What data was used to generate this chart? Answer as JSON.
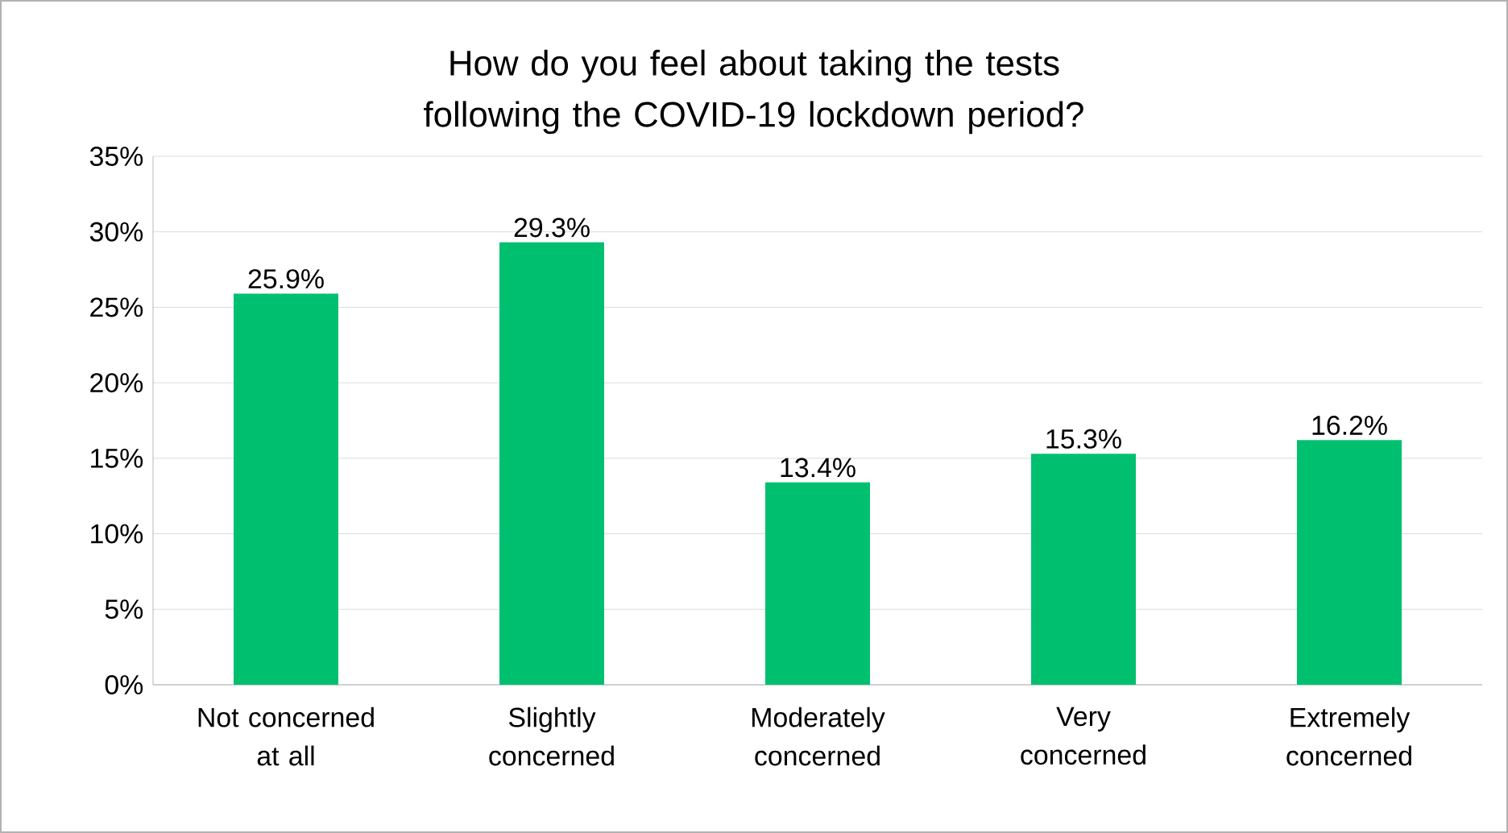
{
  "chart_data": {
    "type": "bar",
    "title": "How do you feel about taking the tests following the COVID-19 lockdown period?",
    "categories": [
      "Not concerned at all",
      "Slightly concerned",
      "Moderately concerned",
      "Very concerned",
      "Extremely concerned"
    ],
    "values": [
      25.9,
      29.3,
      13.4,
      15.3,
      16.2
    ],
    "value_labels": [
      "25.9%",
      "29.3%",
      "13.4%",
      "15.3%",
      "16.2%"
    ],
    "color": "#00c06f",
    "ylim": [
      0,
      35
    ],
    "yticks": [
      {
        "value": 0,
        "label": "0%"
      },
      {
        "value": 5,
        "label": "5%"
      },
      {
        "value": 10,
        "label": "10%"
      },
      {
        "value": 15,
        "label": "15%"
      },
      {
        "value": 20,
        "label": "20%"
      },
      {
        "value": 25,
        "label": "25%"
      },
      {
        "value": 30,
        "label": "30%"
      },
      {
        "value": 35,
        "label": "35%"
      }
    ],
    "grid": "y"
  }
}
